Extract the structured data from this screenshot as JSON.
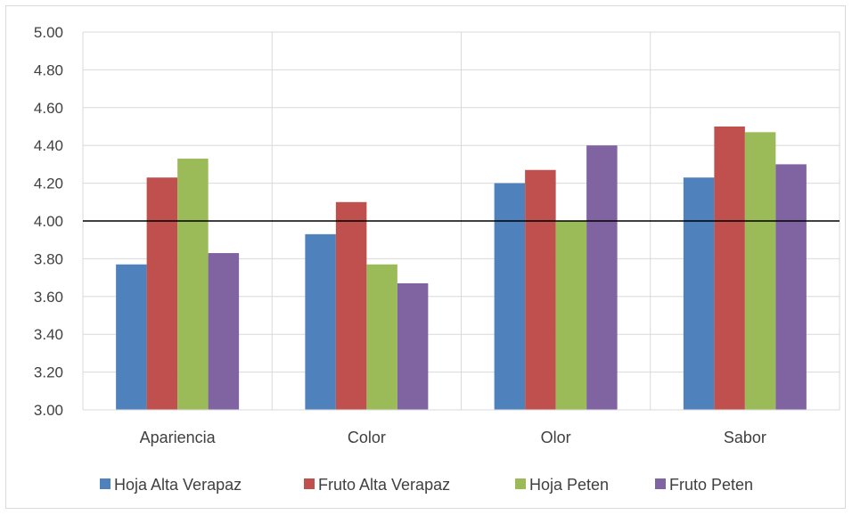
{
  "chart_data": {
    "type": "bar",
    "categories": [
      "Apariencia",
      "Color",
      "Olor",
      "Sabor"
    ],
    "series": [
      {
        "name": "Hoja Alta Verapaz",
        "color": "#4f81bd",
        "values": [
          3.77,
          3.93,
          4.2,
          4.23
        ]
      },
      {
        "name": "Fruto Alta Verapaz",
        "color": "#c0504d",
        "values": [
          4.23,
          4.1,
          4.27,
          4.5
        ]
      },
      {
        "name": "Hoja Peten",
        "color": "#9bbb59",
        "values": [
          4.33,
          3.77,
          4.0,
          4.47
        ]
      },
      {
        "name": "Fruto Peten",
        "color": "#8064a2",
        "values": [
          3.83,
          3.67,
          4.4,
          4.3
        ]
      }
    ],
    "yticks": [
      "3.00",
      "3.20",
      "3.40",
      "3.60",
      "3.80",
      "4.00",
      "4.20",
      "4.40",
      "4.60",
      "4.80",
      "5.00"
    ],
    "ylim": [
      3.0,
      5.0
    ],
    "reference_line": 4.0,
    "grid": true,
    "legend_position": "bottom",
    "title": "",
    "xlabel": "",
    "ylabel": ""
  }
}
